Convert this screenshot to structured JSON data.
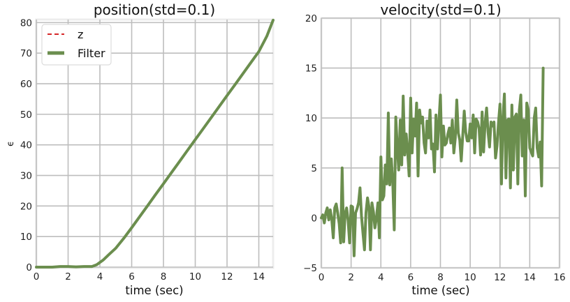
{
  "chart_data": [
    {
      "type": "line",
      "title": "position(std=0.1)",
      "xlabel": "time (sec)",
      "ylabel": "ϵ",
      "xlim": [
        0,
        14.9
      ],
      "ylim": [
        0,
        81
      ],
      "xticks": [
        "0",
        "2",
        "4",
        "6",
        "8",
        "10",
        "12",
        "14"
      ],
      "yticks": [
        "0",
        "10",
        "20",
        "30",
        "40",
        "50",
        "60",
        "70",
        "80"
      ],
      "grid": true,
      "legend_position": "top-left",
      "series": [
        {
          "name": "z",
          "style": "dashed",
          "color": "#d62728",
          "x": [
            0,
            0.5,
            1,
            1.5,
            2,
            2.5,
            3,
            3.5,
            3.8,
            4.2,
            4.6,
            5,
            5.5,
            6,
            6.5,
            7,
            7.5,
            8,
            8.5,
            9,
            9.5,
            10,
            10.5,
            11,
            11.5,
            12,
            12.5,
            13,
            13.5,
            14,
            14.5,
            14.9
          ],
          "y": [
            0,
            0,
            0,
            0.2,
            0.2,
            0.1,
            0.2,
            0.2,
            0.8,
            2.3,
            4.3,
            6.2,
            9.4,
            12.9,
            16.5,
            20.1,
            23.7,
            27.3,
            30.9,
            34.5,
            38.1,
            41.7,
            45.3,
            48.9,
            52.5,
            56.1,
            59.7,
            63.3,
            66.9,
            70.5,
            75.5,
            80.8
          ]
        },
        {
          "name": "Filter",
          "style": "solid",
          "color": "#6b8e4e",
          "x": [
            0,
            0.5,
            1,
            1.5,
            2,
            2.5,
            3,
            3.5,
            3.8,
            4.2,
            4.6,
            5,
            5.5,
            6,
            6.5,
            7,
            7.5,
            8,
            8.5,
            9,
            9.5,
            10,
            10.5,
            11,
            11.5,
            12,
            12.5,
            13,
            13.5,
            14,
            14.5,
            14.9
          ],
          "y": [
            0,
            0,
            0,
            0.2,
            0.2,
            0.1,
            0.2,
            0.2,
            0.8,
            2.3,
            4.3,
            6.2,
            9.4,
            12.9,
            16.5,
            20.1,
            23.7,
            27.3,
            30.9,
            34.5,
            38.1,
            41.7,
            45.3,
            48.9,
            52.5,
            56.1,
            59.7,
            63.3,
            66.9,
            70.5,
            75.5,
            80.8
          ]
        }
      ]
    },
    {
      "type": "line",
      "title": "velocity(std=0.1)",
      "xlabel": "time (sec)",
      "ylabel": "",
      "xlim": [
        0,
        16
      ],
      "ylim": [
        -5,
        20
      ],
      "xticks": [
        "0",
        "2",
        "4",
        "6",
        "8",
        "10",
        "12",
        "14",
        "16"
      ],
      "yticks": [
        "−5",
        "0",
        "5",
        "10",
        "15",
        "20"
      ],
      "grid": true,
      "series": [
        {
          "name": "",
          "style": "solid",
          "color": "#6b8e4e",
          "x": [
            0,
            0.1,
            0.2,
            0.3,
            0.4,
            0.5,
            0.6,
            0.7,
            0.8,
            0.9,
            1.0,
            1.1,
            1.2,
            1.3,
            1.4,
            1.5,
            1.6,
            1.7,
            1.8,
            1.9,
            2.0,
            2.1,
            2.2,
            2.3,
            2.4,
            2.5,
            2.6,
            2.7,
            2.8,
            2.9,
            3.0,
            3.1,
            3.2,
            3.3,
            3.4,
            3.5,
            3.6,
            3.7,
            3.8,
            3.9,
            4.0,
            4.1,
            4.2,
            4.3,
            4.4,
            4.5,
            4.6,
            4.7,
            4.8,
            4.9,
            5.0,
            5.1,
            5.2,
            5.3,
            5.4,
            5.5,
            5.6,
            5.7,
            5.8,
            5.9,
            6.0,
            6.1,
            6.2,
            6.3,
            6.4,
            6.5,
            6.6,
            6.7,
            6.8,
            6.9,
            7.0,
            7.1,
            7.2,
            7.3,
            7.4,
            7.5,
            7.6,
            7.7,
            7.8,
            7.9,
            8.0,
            8.1,
            8.2,
            8.3,
            8.4,
            8.5,
            8.6,
            8.7,
            8.8,
            8.9,
            9.0,
            9.1,
            9.2,
            9.3,
            9.4,
            9.5,
            9.6,
            9.7,
            9.8,
            9.9,
            10.0,
            10.1,
            10.2,
            10.3,
            10.4,
            10.5,
            10.6,
            10.7,
            10.8,
            10.9,
            11.0,
            11.1,
            11.2,
            11.3,
            11.4,
            11.5,
            11.6,
            11.7,
            11.8,
            11.9,
            12.0,
            12.1,
            12.2,
            12.3,
            12.4,
            12.5,
            12.6,
            12.7,
            12.8,
            12.9,
            13.0,
            13.1,
            13.2,
            13.3,
            13.4,
            13.5,
            13.6,
            13.7,
            13.8,
            13.9,
            14.0,
            14.1,
            14.2,
            14.3,
            14.4,
            14.5,
            14.6,
            14.7,
            14.8,
            14.9
          ],
          "y": [
            0,
            0.3,
            -0.5,
            0.5,
            1.0,
            -0.2,
            0.8,
            -0.1,
            -2.0,
            1.0,
            1.4,
            0.5,
            -0.6,
            -2.5,
            5.0,
            -2.4,
            0.4,
            1.0,
            -0.3,
            -2.5,
            1.2,
            1.1,
            -3.8,
            0.5,
            0.9,
            1.5,
            3.0,
            0.2,
            -1.6,
            -3.2,
            0.5,
            2.0,
            1.1,
            -3.2,
            1.5,
            0.6,
            -1.0,
            0,
            1.5,
            -2.0,
            6.1,
            1.8,
            2.2,
            5.3,
            3.4,
            10.5,
            3.3,
            5.9,
            3.5,
            -1.2,
            10.1,
            7.2,
            4.8,
            9.8,
            5.3,
            12.2,
            6.3,
            8.4,
            6.6,
            4.2,
            12.0,
            6.5,
            9.9,
            8.2,
            11.5,
            4.2,
            10.8,
            9.5,
            10.1,
            7.5,
            6.5,
            9.7,
            8.0,
            10.8,
            6.9,
            7.4,
            4.6,
            10.3,
            6.9,
            9.7,
            12.3,
            6.1,
            9.2,
            7.3,
            7.5,
            8.4,
            9.0,
            7.5,
            9.8,
            6.5,
            8.0,
            11.8,
            8.5,
            7.8,
            5.7,
            8.3,
            10.7,
            8.6,
            7.7,
            7.7,
            9.4,
            8.0,
            10.3,
            6.5,
            9.9,
            9.6,
            8.9,
            6.3,
            10.6,
            6.6,
            9.4,
            11.0,
            8.6,
            7.1,
            9.6,
            9.2,
            9.6,
            6.0,
            7.2,
            9.5,
            11.4,
            3.4,
            10.0,
            12.4,
            4.0,
            9.8,
            9.9,
            3.0,
            11.3,
            4.8,
            10.1,
            10.4,
            3.4,
            10.8,
            12.3,
            6.2,
            9.8,
            2.2,
            11.5,
            10.8,
            7.0,
            6.6,
            6.2,
            10.0,
            11.0,
            7.0,
            6.1,
            7.6,
            3.2,
            15.0
          ]
        }
      ]
    }
  ]
}
